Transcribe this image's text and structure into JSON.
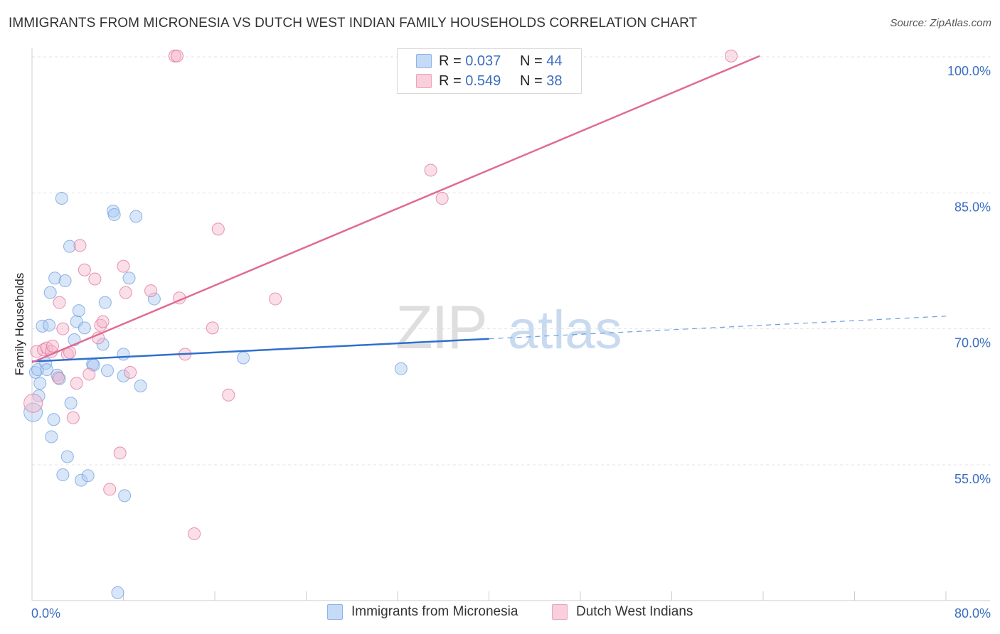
{
  "title": "IMMIGRANTS FROM MICRONESIA VS DUTCH WEST INDIAN FAMILY HOUSEHOLDS CORRELATION CHART",
  "source": "Source: ZipAtlas.com",
  "watermark": {
    "zip": "ZIP",
    "atlas": "atlas"
  },
  "legend_top": [
    {
      "r_label": "R = ",
      "r_value": "0.037",
      "n_label": "N = ",
      "n_value": "44",
      "color": "#a8c8f0"
    },
    {
      "r_label": "R = ",
      "r_value": "0.549",
      "n_label": "N = ",
      "n_value": "38",
      "color": "#f5b8cc"
    }
  ],
  "chart_data": {
    "type": "scatter",
    "title": "IMMIGRANTS FROM MICRONESIA VS DUTCH WEST INDIAN FAMILY HOUSEHOLDS CORRELATION CHART",
    "xlabel": "",
    "ylabel": "Family Households",
    "xlim": [
      0,
      80
    ],
    "ylim": [
      40,
      101.5
    ],
    "x_tick_labels": [
      "0.0%",
      "80.0%"
    ],
    "y_ticks": [
      55,
      70,
      85,
      100
    ],
    "y_tick_labels": [
      "55.0%",
      "70.0%",
      "85.0%",
      "100.0%"
    ],
    "grid": true,
    "legend_position": "top-center",
    "series": [
      {
        "name": "Immigrants from Micronesia",
        "color": "#6a9fe0",
        "fill": "#a8c8f0",
        "points": [
          [
            0.1,
            60.8
          ],
          [
            0.3,
            65.2
          ],
          [
            0.5,
            65.5
          ],
          [
            0.6,
            62.6
          ],
          [
            0.7,
            64.0
          ],
          [
            0.9,
            70.3
          ],
          [
            1.2,
            66.2
          ],
          [
            1.3,
            65.5
          ],
          [
            1.5,
            70.4
          ],
          [
            1.6,
            74.0
          ],
          [
            1.7,
            58.1
          ],
          [
            1.9,
            60.0
          ],
          [
            2.0,
            75.6
          ],
          [
            2.2,
            64.9
          ],
          [
            2.4,
            64.5
          ],
          [
            2.6,
            84.4
          ],
          [
            2.7,
            53.9
          ],
          [
            2.9,
            75.3
          ],
          [
            3.1,
            55.9
          ],
          [
            3.3,
            79.1
          ],
          [
            3.4,
            61.8
          ],
          [
            3.7,
            68.8
          ],
          [
            3.9,
            70.8
          ],
          [
            4.1,
            72.0
          ],
          [
            4.3,
            53.3
          ],
          [
            4.6,
            70.1
          ],
          [
            4.9,
            53.8
          ],
          [
            5.3,
            66.1
          ],
          [
            5.4,
            66.0
          ],
          [
            6.2,
            68.3
          ],
          [
            6.4,
            72.9
          ],
          [
            6.6,
            65.4
          ],
          [
            7.1,
            83.0
          ],
          [
            7.2,
            82.6
          ],
          [
            7.5,
            40.9
          ],
          [
            8.0,
            67.2
          ],
          [
            8.0,
            64.8
          ],
          [
            8.1,
            51.6
          ],
          [
            8.5,
            75.6
          ],
          [
            9.1,
            82.4
          ],
          [
            9.5,
            63.7
          ],
          [
            10.7,
            73.3
          ],
          [
            18.5,
            66.8
          ],
          [
            32.3,
            65.6
          ]
        ]
      },
      {
        "name": "Dutch West Indians",
        "color": "#e07099",
        "fill": "#f5b8cc",
        "points": [
          [
            0.1,
            61.8
          ],
          [
            0.4,
            67.5
          ],
          [
            1.0,
            67.7
          ],
          [
            1.3,
            67.9
          ],
          [
            1.7,
            67.5
          ],
          [
            1.8,
            68.1
          ],
          [
            2.3,
            64.6
          ],
          [
            2.4,
            72.9
          ],
          [
            2.7,
            70.0
          ],
          [
            3.1,
            67.2
          ],
          [
            3.3,
            67.4
          ],
          [
            3.6,
            60.2
          ],
          [
            3.9,
            64.0
          ],
          [
            4.2,
            79.2
          ],
          [
            4.6,
            76.5
          ],
          [
            5.0,
            65.0
          ],
          [
            5.5,
            75.5
          ],
          [
            5.8,
            69.0
          ],
          [
            6.0,
            70.4
          ],
          [
            6.2,
            70.8
          ],
          [
            6.8,
            52.3
          ],
          [
            7.7,
            56.3
          ],
          [
            8.0,
            76.9
          ],
          [
            8.2,
            74.0
          ],
          [
            8.6,
            65.2
          ],
          [
            10.4,
            74.2
          ],
          [
            12.5,
            100.1
          ],
          [
            12.7,
            100.1
          ],
          [
            12.9,
            73.4
          ],
          [
            13.4,
            67.2
          ],
          [
            14.2,
            47.4
          ],
          [
            15.8,
            70.1
          ],
          [
            16.3,
            81.0
          ],
          [
            17.2,
            62.7
          ],
          [
            21.3,
            73.3
          ],
          [
            34.9,
            87.5
          ],
          [
            35.9,
            84.4
          ],
          [
            61.2,
            100.1
          ]
        ]
      }
    ],
    "trend_lines": [
      {
        "series": "Immigrants from Micronesia",
        "x_start": 0,
        "y_start": 66.4,
        "x_end": 40,
        "y_end": 68.9,
        "dashed_to_x": 80,
        "dashed_to_y": 71.4
      },
      {
        "series": "Dutch West Indians",
        "x_start": 0,
        "y_start": 66.3,
        "x_end": 63.7,
        "y_end": 100.1
      }
    ]
  },
  "legend_bottom": [
    {
      "label": "Immigrants from Micronesia",
      "color": "#a8c8f0",
      "border": "#6a9fe0"
    },
    {
      "label": "Dutch West Indians",
      "color": "#f5b8cc",
      "border": "#e07099"
    }
  ]
}
